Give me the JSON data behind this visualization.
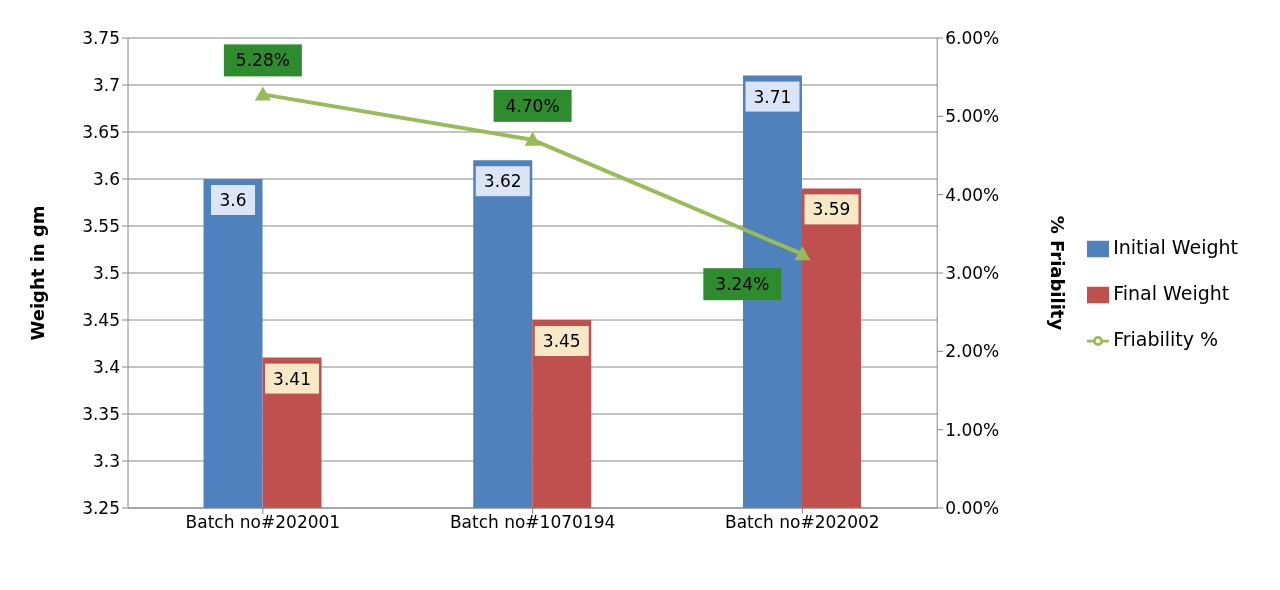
{
  "chart_data": {
    "type": "bar",
    "xlabel": null,
    "ylabel": "Weight in gm",
    "y2label": "% Friability",
    "categories": [
      "Batch no#202001",
      "Batch no#1070194",
      "Batch no#202002"
    ],
    "series": [
      {
        "name": "Initial Weight",
        "color": "#4f81bd",
        "values": [
          3.6,
          3.62,
          3.71
        ],
        "value_labels": [
          "3.6",
          "3.62",
          "3.71"
        ]
      },
      {
        "name": "Final Weight",
        "color": "#c0504d",
        "values": [
          3.41,
          3.45,
          3.59
        ],
        "value_labels": [
          "3.41",
          "3.45",
          "3.59"
        ]
      },
      {
        "name": "Friability %",
        "type": "line",
        "axis": "y2",
        "color": "#9bbb59",
        "marker": "triangle",
        "values": [
          5.28,
          4.7,
          3.24
        ],
        "value_labels": [
          "5.28%",
          "4.70%",
          "3.24%"
        ]
      }
    ],
    "ylim": [
      3.25,
      3.75
    ],
    "yticks": [
      3.25,
      3.3,
      3.35,
      3.4,
      3.45,
      3.5,
      3.55,
      3.6,
      3.65,
      3.7,
      3.75
    ],
    "y2lim": [
      0,
      6
    ],
    "y2ticks": [
      {
        "value": 0,
        "label": "0.00%"
      },
      {
        "value": 1,
        "label": "1.00%"
      },
      {
        "value": 2,
        "label": "2.00%"
      },
      {
        "value": 3,
        "label": "3.00%"
      },
      {
        "value": 4,
        "label": "4.00%"
      },
      {
        "value": 5,
        "label": "5.00%"
      },
      {
        "value": 6,
        "label": "6.00%"
      }
    ],
    "grid": "y",
    "legend": "right"
  }
}
